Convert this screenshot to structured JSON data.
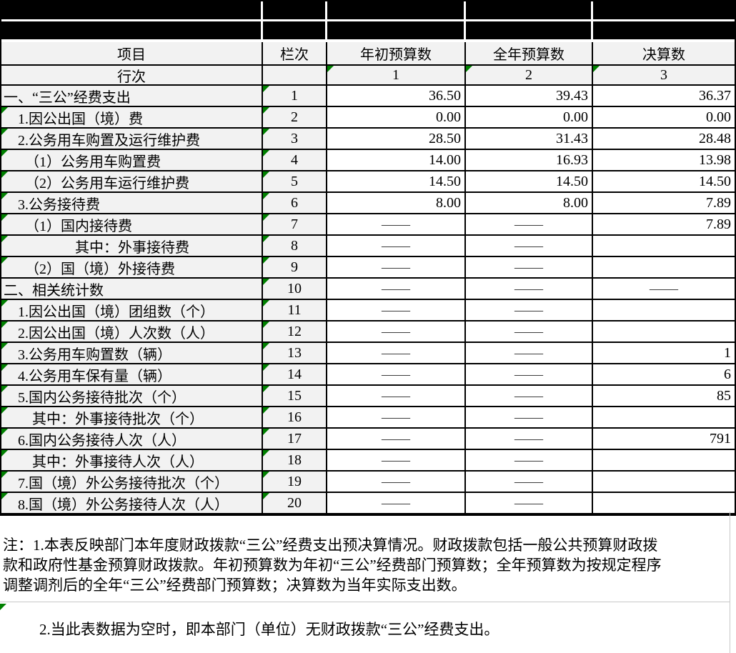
{
  "header": {
    "col_item": "项目",
    "col_lane": "栏次",
    "col1": "年初预算数",
    "col2": "全年预算数",
    "col3": "决算数",
    "row_label": "行次",
    "col_nums": [
      "1",
      "2",
      "3"
    ]
  },
  "table": {
    "rows": [
      {
        "label": "一、“三公”经费支出",
        "line": "1",
        "c1": "36.50",
        "c2": "39.43",
        "c3": "36.37",
        "mi": false
      },
      {
        "label": "　1.因公出国（境）费",
        "line": "2",
        "c1": "0.00",
        "c2": "0.00",
        "c3": "0.00",
        "mi": true
      },
      {
        "label": "　2.公务用车购置及运行维护费",
        "line": "3",
        "c1": "28.50",
        "c2": "31.43",
        "c3": "28.48",
        "mi": true
      },
      {
        "label": "　　（1）公务用车购置费",
        "line": "4",
        "c1": "14.00",
        "c2": "16.93",
        "c3": "13.98",
        "mi": true
      },
      {
        "label": "　　（2）公务用车运行维护费",
        "line": "5",
        "c1": "14.50",
        "c2": "14.50",
        "c3": "14.50",
        "mi": true
      },
      {
        "label": "　3.公务接待费",
        "line": "6",
        "c1": "8.00",
        "c2": "8.00",
        "c3": "7.89",
        "mi": true
      },
      {
        "label": "　　（1）国内接待费",
        "line": "7",
        "c1": "——",
        "c2": "——",
        "c3": "7.89",
        "mi": true
      },
      {
        "label": "　　　　　其中：外事接待费",
        "line": "8",
        "c1": "——",
        "c2": "——",
        "c3": "",
        "mi": true
      },
      {
        "label": "　　（2）国（境）外接待费",
        "line": "9",
        "c1": "——",
        "c2": "——",
        "c3": "",
        "mi": true
      },
      {
        "label": "二、相关统计数",
        "line": "10",
        "c1": "——",
        "c2": "——",
        "c3": "——",
        "mi": false
      },
      {
        "label": "　1.因公出国（境）团组数（个）",
        "line": "11",
        "c1": "——",
        "c2": "——",
        "c3": "",
        "mi": true
      },
      {
        "label": "　2.因公出国（境）人次数（人）",
        "line": "12",
        "c1": "——",
        "c2": "——",
        "c3": "",
        "mi": true
      },
      {
        "label": "　3.公务用车购置数（辆）",
        "line": "13",
        "c1": "——",
        "c2": "——",
        "c3": "1",
        "mi": true
      },
      {
        "label": "　4.公务用车保有量（辆）",
        "line": "14",
        "c1": "——",
        "c2": "——",
        "c3": "6",
        "mi": true
      },
      {
        "label": "　5.国内公务接待批次（个）",
        "line": "15",
        "c1": "——",
        "c2": "——",
        "c3": "85",
        "mi": true
      },
      {
        "label": "　　其中：外事接待批次（个）",
        "line": "16",
        "c1": "——",
        "c2": "——",
        "c3": "",
        "mi": true
      },
      {
        "label": "　6.国内公务接待人次（人）",
        "line": "17",
        "c1": "——",
        "c2": "——",
        "c3": "791",
        "mi": true
      },
      {
        "label": "　　其中：外事接待人次（人）",
        "line": "18",
        "c1": "——",
        "c2": "——",
        "c3": "",
        "mi": true
      },
      {
        "label": "　7.国（境）外公务接待批次（个）",
        "line": "19",
        "c1": "——",
        "c2": "——",
        "c3": "",
        "mi": true
      },
      {
        "label": "　8.国（境）外公务接待人次（人）",
        "line": "20",
        "c1": "——",
        "c2": "——",
        "c3": "",
        "mi": true
      }
    ]
  },
  "notes": {
    "note1_line1": "注：1.本表反映部门本年度财政拨款“三公”经费支出预决算情况。财政拨款包括一般公共预算财政拨",
    "note1_line2": "款和政府性基金预算财政拨款。年初预算数为年初“三公”经费部门预算数；全年预算数为按规定程序",
    "note1_line3": "调整调剂后的全年“三公”经费部门预算数；决算数为当年实际支出数。",
    "note2": "2.当此表数据为空时，即本部门（单位）无财政拨款“三公”经费支出。"
  },
  "colors": {
    "marker_green": "#008000",
    "grid_black": "#000000",
    "cell_gray": "#f2f2f2",
    "faint_gridline": "#c8c8c8"
  }
}
